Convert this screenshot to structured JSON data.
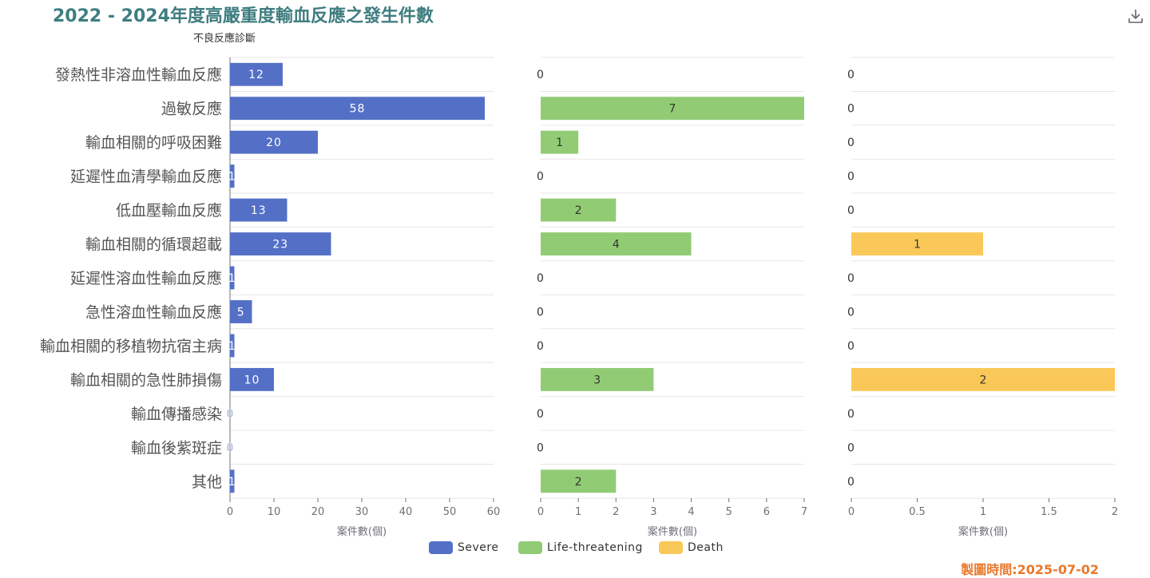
{
  "title": "2022 - 2024年度高嚴重度輸血反應之發生件數",
  "y_axis_title": "不良反應診斷",
  "footer": "製圖時間:2025-07-02",
  "download_icon": "download-icon",
  "colors": {
    "severe": "#5470c6",
    "life_threatening": "#91cc75",
    "death": "#fac858"
  },
  "chart_data": {
    "type": "bar",
    "orientation": "horizontal",
    "categories": [
      "發熱性非溶血性輸血反應",
      "過敏反應",
      "輸血相關的呼吸困難",
      "延遲性血清學輸血反應",
      "低血壓輸血反應",
      "輸血相關的循環超載",
      "延遲性溶血性輸血反應",
      "急性溶血性輸血反應",
      "輸血相關的移植物抗宿主病",
      "輸血相關的急性肺損傷",
      "輸血傳播感染",
      "輸血後紫斑症",
      "其他"
    ],
    "ylabel": "不良反應診斷",
    "xlabel": "案件數(個)",
    "grid": true,
    "legend_position": "bottom",
    "series": [
      {
        "name": "Severe",
        "color": "#5470c6",
        "values": [
          12,
          58,
          20,
          1,
          13,
          23,
          1,
          5,
          1,
          10,
          0,
          0,
          1
        ],
        "xlim": [
          0,
          60
        ],
        "ticks": [
          0,
          10,
          20,
          30,
          40,
          50,
          60
        ],
        "tick_labels": [
          "0",
          "10",
          "20",
          "30",
          "40",
          "50",
          "60"
        ]
      },
      {
        "name": "Life-threatening",
        "color": "#91cc75",
        "values": [
          0,
          7,
          1,
          0,
          2,
          4,
          0,
          0,
          0,
          3,
          0,
          0,
          2
        ],
        "xlim": [
          0,
          7
        ],
        "ticks": [
          0,
          1,
          2,
          3,
          4,
          5,
          6,
          7
        ],
        "tick_labels": [
          "0",
          "1",
          "2",
          "3",
          "4",
          "5",
          "6",
          "7"
        ]
      },
      {
        "name": "Death",
        "color": "#fac858",
        "values": [
          0,
          0,
          0,
          0,
          0,
          1,
          0,
          0,
          0,
          2,
          0,
          0,
          0
        ],
        "xlim": [
          0,
          2
        ],
        "ticks": [
          0,
          0.5,
          1,
          1.5,
          2
        ],
        "tick_labels": [
          "0",
          "0.5",
          "1",
          "1.5",
          "2"
        ]
      }
    ]
  }
}
